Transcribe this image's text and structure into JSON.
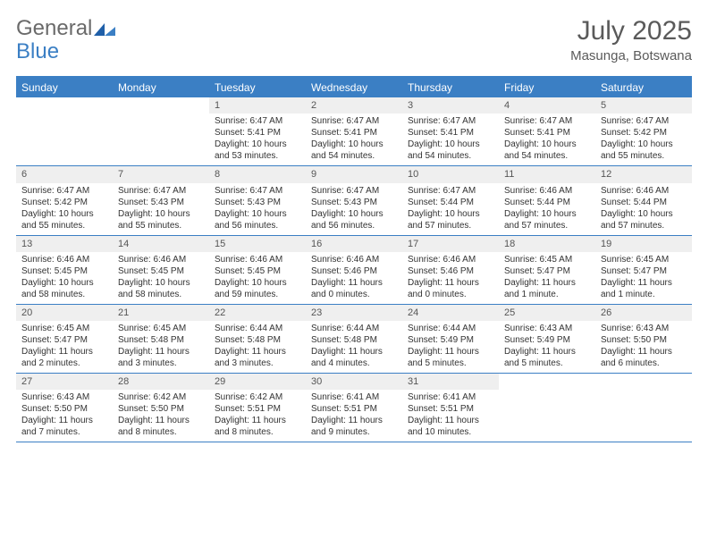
{
  "logo": {
    "text_a": "General",
    "text_b": "Blue"
  },
  "header": {
    "title": "July 2025",
    "location": "Masunga, Botswana"
  },
  "colors": {
    "brand": "#3b7fc4",
    "daynum_bg": "#efefef",
    "text": "#333333",
    "muted": "#5a5a5a"
  },
  "day_names": [
    "Sunday",
    "Monday",
    "Tuesday",
    "Wednesday",
    "Thursday",
    "Friday",
    "Saturday"
  ],
  "weeks": [
    [
      {
        "n": "",
        "sr": "",
        "ss": "",
        "dl": ""
      },
      {
        "n": "",
        "sr": "",
        "ss": "",
        "dl": ""
      },
      {
        "n": "1",
        "sr": "Sunrise: 6:47 AM",
        "ss": "Sunset: 5:41 PM",
        "dl": "Daylight: 10 hours and 53 minutes."
      },
      {
        "n": "2",
        "sr": "Sunrise: 6:47 AM",
        "ss": "Sunset: 5:41 PM",
        "dl": "Daylight: 10 hours and 54 minutes."
      },
      {
        "n": "3",
        "sr": "Sunrise: 6:47 AM",
        "ss": "Sunset: 5:41 PM",
        "dl": "Daylight: 10 hours and 54 minutes."
      },
      {
        "n": "4",
        "sr": "Sunrise: 6:47 AM",
        "ss": "Sunset: 5:41 PM",
        "dl": "Daylight: 10 hours and 54 minutes."
      },
      {
        "n": "5",
        "sr": "Sunrise: 6:47 AM",
        "ss": "Sunset: 5:42 PM",
        "dl": "Daylight: 10 hours and 55 minutes."
      }
    ],
    [
      {
        "n": "6",
        "sr": "Sunrise: 6:47 AM",
        "ss": "Sunset: 5:42 PM",
        "dl": "Daylight: 10 hours and 55 minutes."
      },
      {
        "n": "7",
        "sr": "Sunrise: 6:47 AM",
        "ss": "Sunset: 5:43 PM",
        "dl": "Daylight: 10 hours and 55 minutes."
      },
      {
        "n": "8",
        "sr": "Sunrise: 6:47 AM",
        "ss": "Sunset: 5:43 PM",
        "dl": "Daylight: 10 hours and 56 minutes."
      },
      {
        "n": "9",
        "sr": "Sunrise: 6:47 AM",
        "ss": "Sunset: 5:43 PM",
        "dl": "Daylight: 10 hours and 56 minutes."
      },
      {
        "n": "10",
        "sr": "Sunrise: 6:47 AM",
        "ss": "Sunset: 5:44 PM",
        "dl": "Daylight: 10 hours and 57 minutes."
      },
      {
        "n": "11",
        "sr": "Sunrise: 6:46 AM",
        "ss": "Sunset: 5:44 PM",
        "dl": "Daylight: 10 hours and 57 minutes."
      },
      {
        "n": "12",
        "sr": "Sunrise: 6:46 AM",
        "ss": "Sunset: 5:44 PM",
        "dl": "Daylight: 10 hours and 57 minutes."
      }
    ],
    [
      {
        "n": "13",
        "sr": "Sunrise: 6:46 AM",
        "ss": "Sunset: 5:45 PM",
        "dl": "Daylight: 10 hours and 58 minutes."
      },
      {
        "n": "14",
        "sr": "Sunrise: 6:46 AM",
        "ss": "Sunset: 5:45 PM",
        "dl": "Daylight: 10 hours and 58 minutes."
      },
      {
        "n": "15",
        "sr": "Sunrise: 6:46 AM",
        "ss": "Sunset: 5:45 PM",
        "dl": "Daylight: 10 hours and 59 minutes."
      },
      {
        "n": "16",
        "sr": "Sunrise: 6:46 AM",
        "ss": "Sunset: 5:46 PM",
        "dl": "Daylight: 11 hours and 0 minutes."
      },
      {
        "n": "17",
        "sr": "Sunrise: 6:46 AM",
        "ss": "Sunset: 5:46 PM",
        "dl": "Daylight: 11 hours and 0 minutes."
      },
      {
        "n": "18",
        "sr": "Sunrise: 6:45 AM",
        "ss": "Sunset: 5:47 PM",
        "dl": "Daylight: 11 hours and 1 minute."
      },
      {
        "n": "19",
        "sr": "Sunrise: 6:45 AM",
        "ss": "Sunset: 5:47 PM",
        "dl": "Daylight: 11 hours and 1 minute."
      }
    ],
    [
      {
        "n": "20",
        "sr": "Sunrise: 6:45 AM",
        "ss": "Sunset: 5:47 PM",
        "dl": "Daylight: 11 hours and 2 minutes."
      },
      {
        "n": "21",
        "sr": "Sunrise: 6:45 AM",
        "ss": "Sunset: 5:48 PM",
        "dl": "Daylight: 11 hours and 3 minutes."
      },
      {
        "n": "22",
        "sr": "Sunrise: 6:44 AM",
        "ss": "Sunset: 5:48 PM",
        "dl": "Daylight: 11 hours and 3 minutes."
      },
      {
        "n": "23",
        "sr": "Sunrise: 6:44 AM",
        "ss": "Sunset: 5:48 PM",
        "dl": "Daylight: 11 hours and 4 minutes."
      },
      {
        "n": "24",
        "sr": "Sunrise: 6:44 AM",
        "ss": "Sunset: 5:49 PM",
        "dl": "Daylight: 11 hours and 5 minutes."
      },
      {
        "n": "25",
        "sr": "Sunrise: 6:43 AM",
        "ss": "Sunset: 5:49 PM",
        "dl": "Daylight: 11 hours and 5 minutes."
      },
      {
        "n": "26",
        "sr": "Sunrise: 6:43 AM",
        "ss": "Sunset: 5:50 PM",
        "dl": "Daylight: 11 hours and 6 minutes."
      }
    ],
    [
      {
        "n": "27",
        "sr": "Sunrise: 6:43 AM",
        "ss": "Sunset: 5:50 PM",
        "dl": "Daylight: 11 hours and 7 minutes."
      },
      {
        "n": "28",
        "sr": "Sunrise: 6:42 AM",
        "ss": "Sunset: 5:50 PM",
        "dl": "Daylight: 11 hours and 8 minutes."
      },
      {
        "n": "29",
        "sr": "Sunrise: 6:42 AM",
        "ss": "Sunset: 5:51 PM",
        "dl": "Daylight: 11 hours and 8 minutes."
      },
      {
        "n": "30",
        "sr": "Sunrise: 6:41 AM",
        "ss": "Sunset: 5:51 PM",
        "dl": "Daylight: 11 hours and 9 minutes."
      },
      {
        "n": "31",
        "sr": "Sunrise: 6:41 AM",
        "ss": "Sunset: 5:51 PM",
        "dl": "Daylight: 11 hours and 10 minutes."
      },
      {
        "n": "",
        "sr": "",
        "ss": "",
        "dl": ""
      },
      {
        "n": "",
        "sr": "",
        "ss": "",
        "dl": ""
      }
    ]
  ]
}
